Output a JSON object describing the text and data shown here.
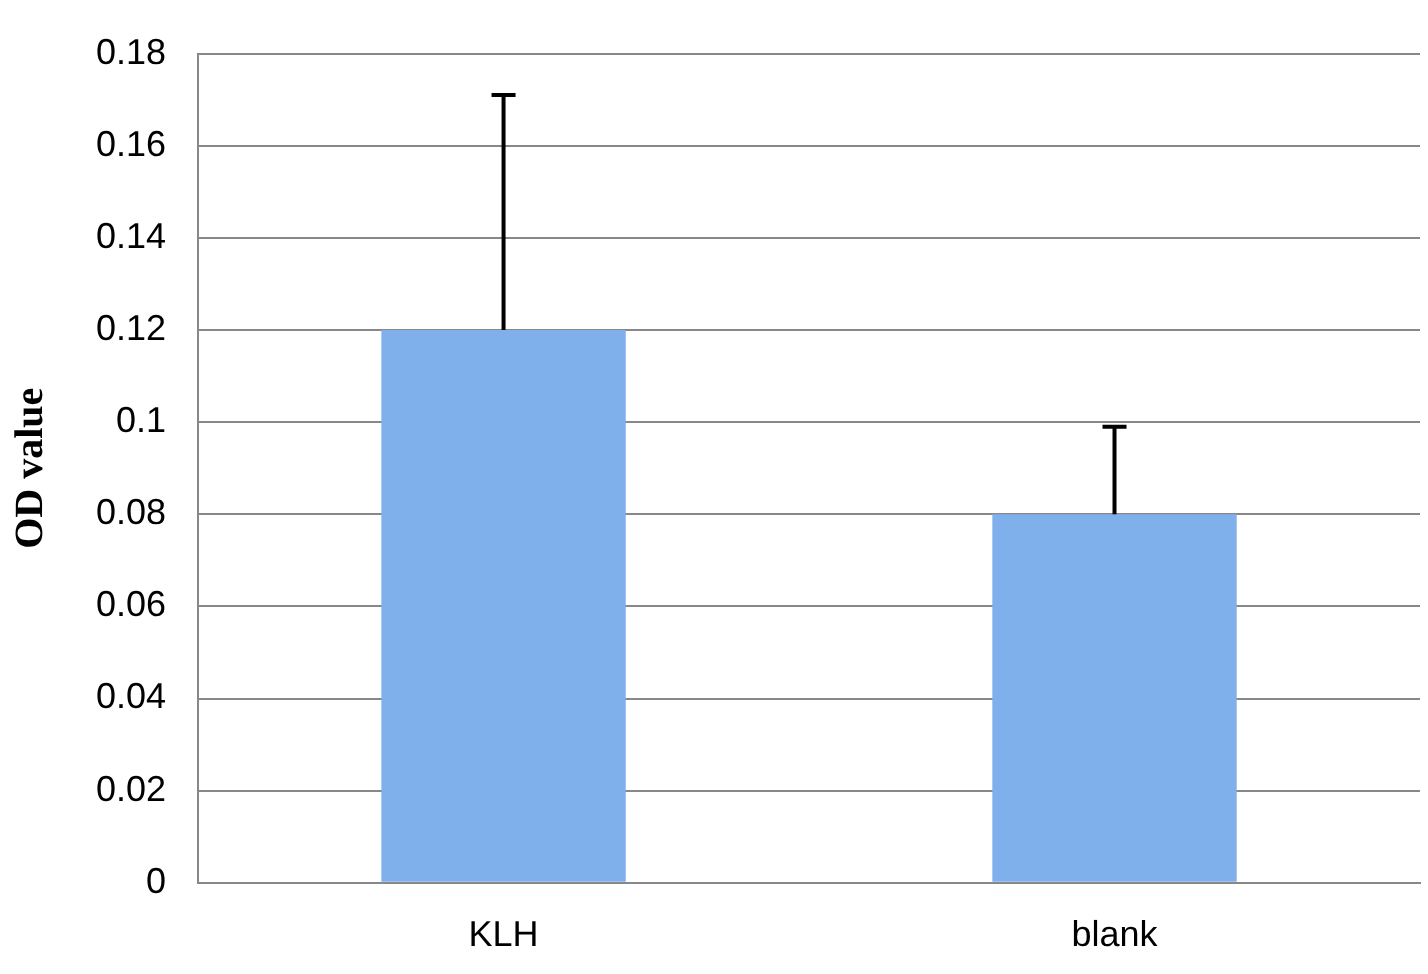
{
  "chart_data": {
    "type": "bar",
    "ylabel": "OD value",
    "categories": [
      "KLH",
      "blank"
    ],
    "series": [
      {
        "color": "#7fb0ec",
        "values": [
          0.12,
          0.08
        ],
        "errors": [
          [
            0.12,
            0.171
          ],
          [
            0.08,
            0.099
          ]
        ]
      }
    ],
    "ylim": [
      0,
      0.18
    ],
    "yticks": [
      0,
      0.02,
      0.04,
      0.06,
      0.08,
      0.1,
      0.12,
      0.14,
      0.16,
      0.18
    ],
    "grid": "y",
    "legend": false
  }
}
